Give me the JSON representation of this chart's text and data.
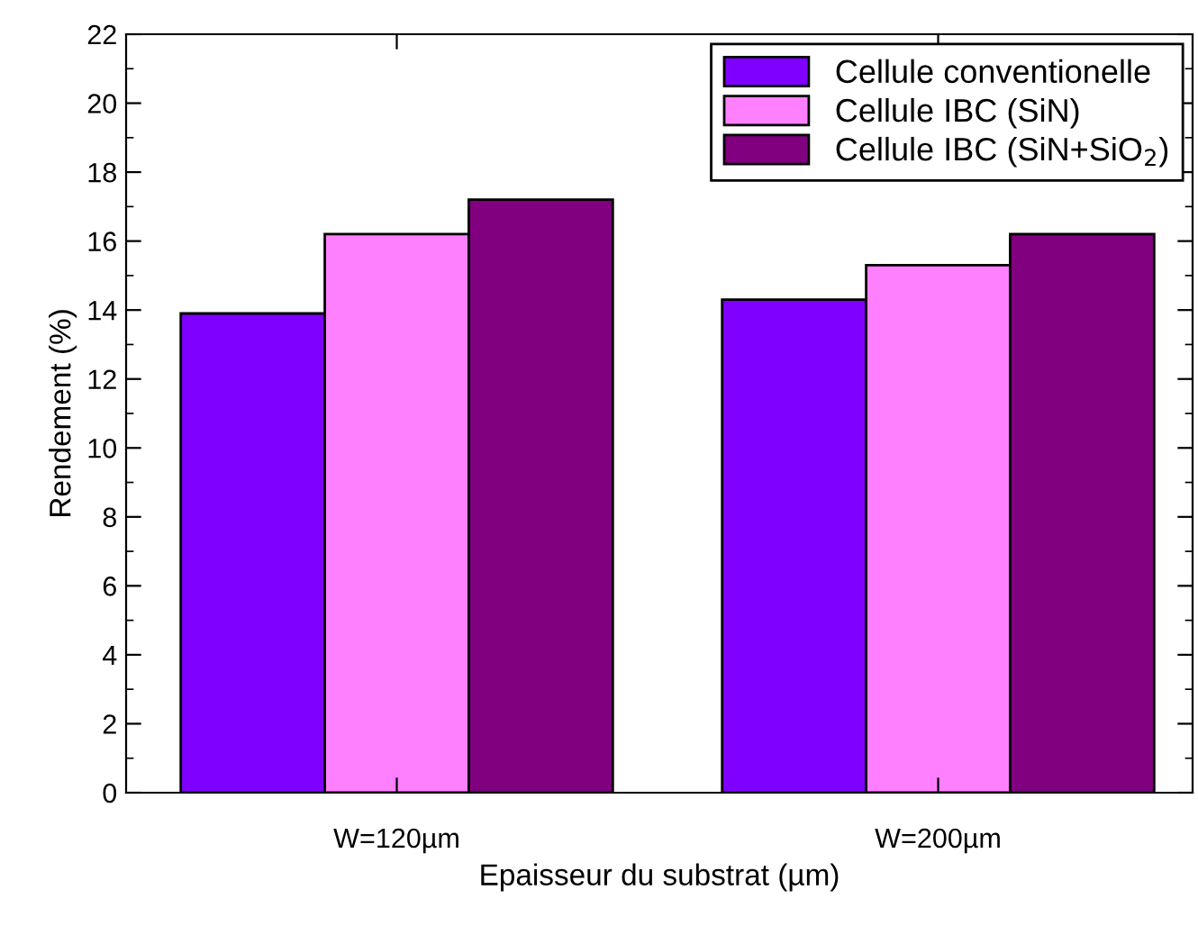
{
  "chart_data": {
    "type": "bar",
    "xlabel": "Epaisseur du substrat (µm)",
    "ylabel": "Rendement (%)",
    "categories": [
      "W=120µm",
      "W=200µm"
    ],
    "series": [
      {
        "name": "Cellule conventionelle",
        "color": "#8000ff",
        "values": [
          13.9,
          14.3
        ]
      },
      {
        "name": "Cellule IBC (SiN)",
        "color": "#ff80ff",
        "values": [
          16.2,
          15.3
        ]
      },
      {
        "name": "Cellule IBC (SiN+SiO$_{2}$)",
        "color": "#800080",
        "values": [
          17.2,
          16.2
        ]
      }
    ],
    "ylim": [
      0,
      22
    ],
    "yticks": [
      0,
      2,
      4,
      6,
      8,
      10,
      12,
      14,
      16,
      18,
      20,
      22
    ],
    "grid": false,
    "legend": "top right"
  }
}
